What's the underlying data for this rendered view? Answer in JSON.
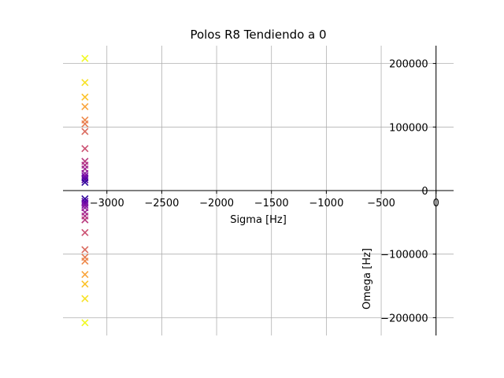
{
  "chart_data": {
    "type": "scatter",
    "title": "Polos R8 Tendiendo a 0",
    "xlabel": "Sigma [Hz]",
    "ylabel": "Omega [Hz]",
    "xlim": [
      -3400,
      160
    ],
    "ylim": [
      -228000,
      228000
    ],
    "grid": true,
    "marker": "x",
    "colormap": "plasma",
    "x_ticks": [
      {
        "value": -3000,
        "label": "−3000"
      },
      {
        "value": -2500,
        "label": "−2500"
      },
      {
        "value": -2000,
        "label": "−2000"
      },
      {
        "value": -1500,
        "label": "−1500"
      },
      {
        "value": -1000,
        "label": "−1000"
      },
      {
        "value": -500,
        "label": "−500"
      },
      {
        "value": 0,
        "label": "0"
      }
    ],
    "y_ticks": [
      {
        "value": 200000,
        "label": "200000"
      },
      {
        "value": 100000,
        "label": "100000"
      },
      {
        "value": 0,
        "label": "0"
      },
      {
        "value": -100000,
        "label": "−100000"
      },
      {
        "value": -200000,
        "label": "−200000"
      }
    ],
    "points": [
      {
        "x": -3200,
        "y": 208000,
        "color": "#f0f921"
      },
      {
        "x": -3200,
        "y": 170000,
        "color": "#f7e225"
      },
      {
        "x": -3200,
        "y": 147000,
        "color": "#fcc228"
      },
      {
        "x": -3200,
        "y": 132000,
        "color": "#f9a43a"
      },
      {
        "x": -3200,
        "y": 111000,
        "color": "#ee8a4b"
      },
      {
        "x": -3200,
        "y": 105000,
        "color": "#e77c53"
      },
      {
        "x": -3200,
        "y": 93000,
        "color": "#da6a5e"
      },
      {
        "x": -3200,
        "y": 66000,
        "color": "#cb4f71"
      },
      {
        "x": -3200,
        "y": 46000,
        "color": "#b93d80"
      },
      {
        "x": -3200,
        "y": 40000,
        "color": "#b0318a"
      },
      {
        "x": -3200,
        "y": 34000,
        "color": "#a12b94"
      },
      {
        "x": -3200,
        "y": 27000,
        "color": "#8f1fa0"
      },
      {
        "x": -3200,
        "y": 23000,
        "color": "#7e11a6"
      },
      {
        "x": -3200,
        "y": 20000,
        "color": "#6a07a8"
      },
      {
        "x": -3200,
        "y": 17000,
        "color": "#5402a3"
      },
      {
        "x": -3200,
        "y": 13000,
        "color": "#2e049a"
      },
      {
        "x": -3200,
        "y": -13000,
        "color": "#2e049a"
      },
      {
        "x": -3200,
        "y": -17000,
        "color": "#5402a3"
      },
      {
        "x": -3200,
        "y": -20000,
        "color": "#6a07a8"
      },
      {
        "x": -3200,
        "y": -23000,
        "color": "#7e11a6"
      },
      {
        "x": -3200,
        "y": -27000,
        "color": "#8f1fa0"
      },
      {
        "x": -3200,
        "y": -34000,
        "color": "#a12b94"
      },
      {
        "x": -3200,
        "y": -40000,
        "color": "#b0318a"
      },
      {
        "x": -3200,
        "y": -46000,
        "color": "#b93d80"
      },
      {
        "x": -3200,
        "y": -66000,
        "color": "#cb4f71"
      },
      {
        "x": -3200,
        "y": -93000,
        "color": "#da6a5e"
      },
      {
        "x": -3200,
        "y": -105000,
        "color": "#e77c53"
      },
      {
        "x": -3200,
        "y": -111000,
        "color": "#ee8a4b"
      },
      {
        "x": -3200,
        "y": -132000,
        "color": "#f9a43a"
      },
      {
        "x": -3200,
        "y": -147000,
        "color": "#fcc228"
      },
      {
        "x": -3200,
        "y": -170000,
        "color": "#f7e225"
      },
      {
        "x": -3200,
        "y": -208000,
        "color": "#f0f921"
      }
    ]
  }
}
